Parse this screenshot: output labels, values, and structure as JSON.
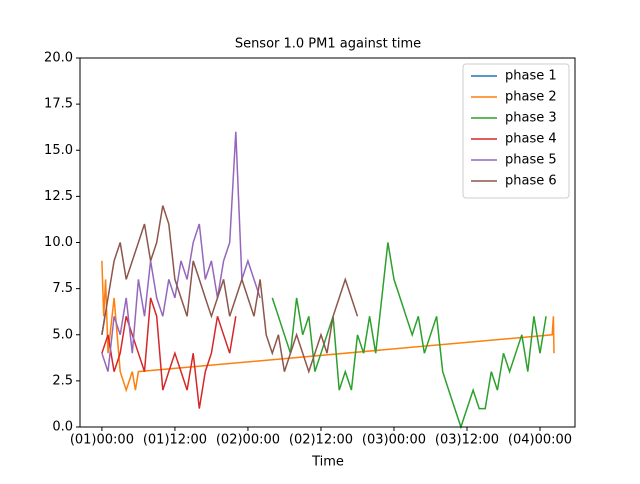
{
  "chart_data": {
    "type": "line",
    "title": "Sensor 1.0 PM1 against  time",
    "x_label": "Time",
    "xlim": [
      -3.6,
      77.75
    ],
    "xticks": [
      {
        "value": 0,
        "label": "(01)00:00"
      },
      {
        "value": 12,
        "label": "(01)12:00"
      },
      {
        "value": 24,
        "label": "(02)00:00"
      },
      {
        "value": 36,
        "label": "(02)12:00"
      },
      {
        "value": 48,
        "label": "(03)00:00"
      },
      {
        "value": 60,
        "label": "(03)12:00"
      },
      {
        "value": 72,
        "label": "(04)00:00"
      }
    ],
    "ylim": [
      0,
      20
    ],
    "yticks": [
      {
        "value": 0,
        "label": "0.0"
      },
      2.5,
      {
        "value": 5,
        "label": "5.0"
      },
      7.5,
      {
        "value": 10,
        "label": "10.0"
      },
      12.5,
      {
        "value": 15,
        "label": "15.0"
      },
      17.5,
      {
        "value": 20,
        "label": "20.0"
      }
    ],
    "legend": "upper right",
    "series": [
      {
        "name": "phase 1",
        "color": "#1f77b4",
        "x": [
          0,
          0.5
        ],
        "values": [
          5,
          6
        ]
      },
      {
        "name": "phase 2",
        "color": "#ff7f0e",
        "x": [
          0,
          0.3,
          0.6,
          1,
          2,
          3,
          4,
          5,
          5.5,
          6,
          74,
          74.2,
          74.3
        ],
        "values": [
          9,
          6,
          8,
          4,
          7,
          3,
          2,
          3,
          2,
          3,
          5,
          6,
          4
        ]
      },
      {
        "name": "phase 3",
        "color": "#2ca02c",
        "x": [
          28,
          29,
          30,
          31,
          32,
          33,
          34,
          35,
          36,
          37,
          38,
          39,
          40,
          41,
          42,
          43,
          44,
          45,
          46,
          47,
          48,
          49,
          50,
          51,
          52,
          53,
          54,
          55,
          56,
          57,
          58,
          59,
          60,
          61,
          62,
          63,
          64,
          65,
          66,
          67,
          68,
          69,
          70,
          71,
          72,
          73
        ],
        "values": [
          7,
          6,
          5,
          4,
          7,
          5,
          6,
          3,
          4,
          5,
          6,
          2,
          3,
          2,
          5,
          4,
          6,
          4,
          7,
          10,
          8,
          7,
          6,
          5,
          6,
          4,
          5,
          6,
          3,
          2,
          1,
          0,
          1,
          2,
          1,
          1,
          3,
          2,
          4,
          3,
          4,
          5,
          3,
          6,
          4,
          6
        ]
      },
      {
        "name": "phase 4",
        "color": "#d62728",
        "x": [
          0,
          1,
          2,
          3,
          4,
          5,
          6,
          7,
          8,
          9,
          10,
          11,
          12,
          13,
          14,
          15,
          16,
          17,
          18,
          19,
          20,
          21,
          22
        ],
        "values": [
          4,
          5,
          3,
          4,
          6,
          5,
          4,
          3,
          7,
          6,
          2,
          3,
          4,
          3,
          2,
          4,
          1,
          3,
          4,
          6,
          5,
          4,
          6
        ]
      },
      {
        "name": "phase 5",
        "color": "#9467bd",
        "x": [
          0,
          1,
          2,
          3,
          4,
          5,
          6,
          7,
          8,
          9,
          10,
          11,
          12,
          13,
          14,
          15,
          16,
          17,
          18,
          19,
          20,
          21,
          22,
          23,
          24,
          25,
          26
        ],
        "values": [
          4,
          3,
          6,
          5,
          7,
          4,
          8,
          6,
          9,
          7,
          6,
          8,
          7,
          9,
          8,
          10,
          11,
          8,
          9,
          7,
          9,
          10,
          16,
          8,
          9,
          8,
          7
        ]
      },
      {
        "name": "phase 6",
        "color": "#8c564b",
        "x": [
          0,
          1,
          2,
          3,
          4,
          5,
          6,
          7,
          8,
          9,
          10,
          11,
          12,
          13,
          14,
          15,
          16,
          17,
          18,
          19,
          20,
          21,
          22,
          23,
          24,
          25,
          26,
          27,
          28,
          29,
          30,
          31,
          32,
          33,
          34,
          35,
          36,
          37,
          38,
          39,
          40,
          41,
          42
        ],
        "values": [
          5,
          7,
          9,
          10,
          8,
          9,
          10,
          11,
          9,
          10,
          12,
          11,
          8,
          7,
          6,
          9,
          8,
          7,
          6,
          7,
          8,
          6,
          7,
          8,
          7,
          6,
          8,
          5,
          4,
          5,
          3,
          4,
          5,
          4,
          3,
          4,
          5,
          4,
          6,
          7,
          8,
          7,
          6
        ]
      }
    ]
  }
}
